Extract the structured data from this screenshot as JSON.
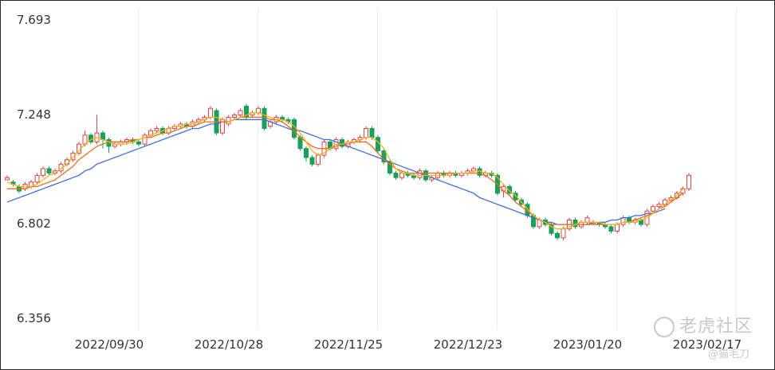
{
  "chart_data": {
    "type": "candlestick",
    "ylim": [
      6.356,
      7.693
    ],
    "yticks": [
      "7.693",
      "7.248",
      "6.802",
      "6.356"
    ],
    "xticks": [
      {
        "label": "2022/09/30",
        "index": 22
      },
      {
        "label": "2022/10/28",
        "index": 42
      },
      {
        "label": "2022/11/25",
        "index": 62
      },
      {
        "label": "2022/12/23",
        "index": 82
      },
      {
        "label": "2023/01/20",
        "index": 102
      },
      {
        "label": "2023/02/17",
        "index": 122
      }
    ],
    "colors": {
      "up": "#e04545",
      "down": "#18a058",
      "ma_short": "#f2b21c",
      "ma_mid": "#ee6c1c",
      "ma_long": "#3f6fd8",
      "grid": "#eeeeee"
    },
    "candles": [
      [
        6.98,
        6.99,
        6.98,
        7.0
      ],
      [
        6.97,
        6.96,
        6.95,
        6.98
      ],
      [
        6.95,
        6.93,
        6.92,
        6.96
      ],
      [
        6.94,
        6.96,
        6.93,
        6.97
      ],
      [
        6.95,
        6.97,
        6.94,
        6.98
      ],
      [
        6.97,
        7.0,
        6.96,
        7.01
      ],
      [
        7.0,
        7.03,
        6.99,
        7.04
      ],
      [
        7.03,
        7.01,
        7.0,
        7.04
      ],
      [
        7.01,
        7.02,
        7.0,
        7.03
      ],
      [
        7.02,
        7.05,
        7.01,
        7.06
      ],
      [
        7.05,
        7.07,
        7.04,
        7.08
      ],
      [
        7.07,
        7.1,
        7.06,
        7.11
      ],
      [
        7.1,
        7.14,
        7.09,
        7.15
      ],
      [
        7.14,
        7.18,
        7.13,
        7.2
      ],
      [
        7.18,
        7.15,
        7.14,
        7.19
      ],
      [
        7.15,
        7.19,
        7.14,
        7.27
      ],
      [
        7.19,
        7.16,
        7.12,
        7.2
      ],
      [
        7.16,
        7.13,
        7.1,
        7.17
      ],
      [
        7.13,
        7.14,
        7.12,
        7.15
      ],
      [
        7.14,
        7.15,
        7.13,
        7.16
      ],
      [
        7.15,
        7.16,
        7.14,
        7.17
      ],
      [
        7.16,
        7.15,
        7.14,
        7.17
      ],
      [
        7.15,
        7.14,
        7.13,
        7.16
      ],
      [
        7.14,
        7.18,
        7.13,
        7.19
      ],
      [
        7.18,
        7.2,
        7.17,
        7.21
      ],
      [
        7.2,
        7.21,
        7.19,
        7.22
      ],
      [
        7.21,
        7.19,
        7.18,
        7.22
      ],
      [
        7.19,
        7.21,
        7.18,
        7.22
      ],
      [
        7.21,
        7.22,
        7.2,
        7.23
      ],
      [
        7.22,
        7.23,
        7.21,
        7.24
      ],
      [
        7.23,
        7.22,
        7.21,
        7.24
      ],
      [
        7.22,
        7.24,
        7.21,
        7.25
      ],
      [
        7.24,
        7.25,
        7.23,
        7.26
      ],
      [
        7.25,
        7.26,
        7.24,
        7.27
      ],
      [
        7.26,
        7.3,
        7.25,
        7.31
      ],
      [
        7.29,
        7.19,
        7.18,
        7.3
      ],
      [
        7.19,
        7.25,
        7.18,
        7.26
      ],
      [
        7.23,
        7.26,
        7.22,
        7.27
      ],
      [
        7.26,
        7.27,
        7.25,
        7.28
      ],
      [
        7.27,
        7.29,
        7.26,
        7.3
      ],
      [
        7.31,
        7.26,
        7.25,
        7.32
      ],
      [
        7.27,
        7.28,
        7.26,
        7.29
      ],
      [
        7.28,
        7.3,
        7.27,
        7.31
      ],
      [
        7.3,
        7.21,
        7.2,
        7.31
      ],
      [
        7.22,
        7.24,
        7.21,
        7.25
      ],
      [
        7.24,
        7.26,
        7.23,
        7.27
      ],
      [
        7.26,
        7.25,
        7.24,
        7.27
      ],
      [
        7.25,
        7.24,
        7.23,
        7.26
      ],
      [
        7.25,
        7.17,
        7.16,
        7.26
      ],
      [
        7.17,
        7.12,
        7.11,
        7.18
      ],
      [
        7.12,
        7.08,
        7.06,
        7.13
      ],
      [
        7.08,
        7.05,
        7.04,
        7.09
      ],
      [
        7.05,
        7.09,
        7.04,
        7.1
      ],
      [
        7.09,
        7.15,
        7.08,
        7.16
      ],
      [
        7.15,
        7.12,
        7.11,
        7.16
      ],
      [
        7.12,
        7.16,
        7.11,
        7.17
      ],
      [
        7.16,
        7.13,
        7.12,
        7.17
      ],
      [
        7.13,
        7.15,
        7.12,
        7.16
      ],
      [
        7.15,
        7.16,
        7.14,
        7.17
      ],
      [
        7.16,
        7.17,
        7.15,
        7.18
      ],
      [
        7.17,
        7.21,
        7.16,
        7.22
      ],
      [
        7.21,
        7.17,
        7.16,
        7.22
      ],
      [
        7.17,
        7.11,
        7.1,
        7.18
      ],
      [
        7.11,
        7.06,
        7.05,
        7.12
      ],
      [
        7.06,
        7.01,
        7.0,
        7.07
      ],
      [
        7.01,
        6.99,
        6.98,
        7.02
      ],
      [
        6.99,
        7.01,
        6.98,
        7.02
      ],
      [
        7.01,
        7.0,
        6.99,
        7.02
      ],
      [
        7.0,
        6.99,
        6.98,
        7.01
      ],
      [
        6.99,
        7.02,
        6.98,
        7.03
      ],
      [
        7.02,
        6.98,
        6.97,
        7.03
      ],
      [
        6.98,
        6.99,
        6.97,
        7.0
      ],
      [
        6.99,
        7.01,
        6.98,
        7.02
      ],
      [
        7.01,
        7.0,
        6.99,
        7.02
      ],
      [
        7.0,
        7.01,
        6.99,
        7.02
      ],
      [
        7.01,
        7.0,
        6.99,
        7.02
      ],
      [
        7.0,
        7.01,
        6.99,
        7.02
      ],
      [
        7.01,
        7.02,
        7.0,
        7.03
      ],
      [
        7.02,
        7.03,
        7.01,
        7.04
      ],
      [
        7.03,
        7.0,
        6.99,
        7.04
      ],
      [
        7.0,
        7.01,
        6.99,
        7.02
      ],
      [
        7.01,
        7.0,
        6.99,
        7.02
      ],
      [
        7.0,
        6.92,
        6.91,
        7.01
      ],
      [
        6.93,
        6.95,
        6.9,
        6.96
      ],
      [
        6.95,
        6.92,
        6.91,
        6.96
      ],
      [
        6.92,
        6.89,
        6.88,
        6.93
      ],
      [
        6.89,
        6.87,
        6.86,
        6.9
      ],
      [
        6.87,
        6.82,
        6.81,
        6.88
      ],
      [
        6.82,
        6.77,
        6.76,
        6.83
      ],
      [
        6.77,
        6.8,
        6.76,
        6.81
      ],
      [
        6.8,
        6.78,
        6.77,
        6.81
      ],
      [
        6.78,
        6.74,
        6.73,
        6.79
      ],
      [
        6.74,
        6.72,
        6.71,
        6.75
      ],
      [
        6.72,
        6.76,
        6.71,
        6.77
      ],
      [
        6.76,
        6.8,
        6.75,
        6.81
      ],
      [
        6.8,
        6.77,
        6.76,
        6.81
      ],
      [
        6.77,
        6.79,
        6.76,
        6.8
      ],
      [
        6.79,
        6.81,
        6.78,
        6.82
      ],
      [
        6.79,
        6.79,
        6.78,
        6.8
      ],
      [
        6.79,
        6.78,
        6.77,
        6.79
      ],
      [
        6.78,
        6.77,
        6.76,
        6.79
      ],
      [
        6.77,
        6.75,
        6.74,
        6.78
      ],
      [
        6.75,
        6.78,
        6.74,
        6.79
      ],
      [
        6.78,
        6.81,
        6.77,
        6.82
      ],
      [
        6.81,
        6.79,
        6.78,
        6.82
      ],
      [
        6.79,
        6.8,
        6.78,
        6.81
      ],
      [
        6.8,
        6.78,
        6.77,
        6.81
      ],
      [
        6.78,
        6.84,
        6.77,
        6.85
      ],
      [
        6.84,
        6.86,
        6.83,
        6.87
      ],
      [
        6.86,
        6.87,
        6.85,
        6.88
      ],
      [
        6.87,
        6.89,
        6.86,
        6.9
      ],
      [
        6.89,
        6.9,
        6.88,
        6.91
      ],
      [
        6.9,
        6.92,
        6.89,
        6.93
      ],
      [
        6.92,
        6.94,
        6.91,
        6.95
      ],
      [
        6.94,
        7.0,
        6.93,
        7.01
      ]
    ],
    "ma_short": [
      6.97,
      6.96,
      6.95,
      6.95,
      6.95,
      6.96,
      6.98,
      7.0,
      7.01,
      7.03,
      7.05,
      7.08,
      7.11,
      7.14,
      7.16,
      7.17,
      7.16,
      7.15,
      7.14,
      7.14,
      7.14,
      7.15,
      7.16,
      7.17,
      7.18,
      7.19,
      7.2,
      7.21,
      7.22,
      7.22,
      7.23,
      7.23,
      7.24,
      7.25,
      7.26,
      7.26,
      7.25,
      7.24,
      7.25,
      7.26,
      7.27,
      7.28,
      7.28,
      7.27,
      7.26,
      7.25,
      7.25,
      7.24,
      7.22,
      7.19,
      7.15,
      7.11,
      7.09,
      7.1,
      7.12,
      7.14,
      7.14,
      7.15,
      7.15,
      7.16,
      7.17,
      7.17,
      7.15,
      7.12,
      7.07,
      7.03,
      7.01,
      7.01,
      7.0,
      7.0,
      7.0,
      7.0,
      7.0,
      7.0,
      7.0,
      7.01,
      7.01,
      7.01,
      7.02,
      7.02,
      7.01,
      7.01,
      6.99,
      6.96,
      6.93,
      6.91,
      6.88,
      6.85,
      6.82,
      6.8,
      6.79,
      6.77,
      6.76,
      6.76,
      6.77,
      6.78,
      6.79,
      6.79,
      6.79,
      6.79,
      6.78,
      6.78,
      6.78,
      6.79,
      6.79,
      6.79,
      6.8,
      6.81,
      6.83,
      6.85,
      6.87,
      6.89,
      6.91,
      6.94
    ],
    "ma_mid": [
      6.94,
      6.94,
      6.94,
      6.94,
      6.95,
      6.95,
      6.96,
      6.97,
      6.98,
      7.0,
      7.02,
      7.04,
      7.07,
      7.09,
      7.11,
      7.13,
      7.14,
      7.15,
      7.15,
      7.15,
      7.15,
      7.16,
      7.16,
      7.17,
      7.17,
      7.18,
      7.19,
      7.19,
      7.2,
      7.21,
      7.22,
      7.22,
      7.23,
      7.24,
      7.24,
      7.24,
      7.24,
      7.24,
      7.25,
      7.26,
      7.26,
      7.26,
      7.26,
      7.26,
      7.25,
      7.25,
      7.24,
      7.22,
      7.2,
      7.17,
      7.15,
      7.13,
      7.12,
      7.12,
      7.12,
      7.13,
      7.14,
      7.14,
      7.15,
      7.15,
      7.15,
      7.13,
      7.1,
      7.07,
      7.05,
      7.03,
      7.02,
      7.01,
      7.01,
      7.01,
      7.01,
      7.01,
      7.01,
      7.01,
      7.01,
      7.01,
      7.01,
      7.01,
      7.01,
      7.01,
      7.0,
      6.98,
      6.96,
      6.93,
      6.91,
      6.88,
      6.86,
      6.84,
      6.82,
      6.8,
      6.79,
      6.78,
      6.78,
      6.78,
      6.78,
      6.78,
      6.78,
      6.78,
      6.78,
      6.78,
      6.78,
      6.78,
      6.78,
      6.79,
      6.79,
      6.8,
      6.81,
      6.82,
      6.83,
      6.85,
      6.86,
      6.88,
      6.9,
      6.92
    ],
    "ma_long": [
      6.88,
      6.89,
      6.9,
      6.91,
      6.92,
      6.93,
      6.94,
      6.95,
      6.96,
      6.97,
      6.98,
      6.99,
      7.0,
      7.02,
      7.03,
      7.05,
      7.06,
      7.07,
      7.08,
      7.09,
      7.1,
      7.11,
      7.12,
      7.13,
      7.14,
      7.15,
      7.16,
      7.17,
      7.18,
      7.19,
      7.2,
      7.21,
      7.21,
      7.22,
      7.23,
      7.23,
      7.24,
      7.24,
      7.25,
      7.25,
      7.25,
      7.25,
      7.25,
      7.25,
      7.24,
      7.23,
      7.22,
      7.21,
      7.2,
      7.2,
      7.19,
      7.18,
      7.17,
      7.16,
      7.16,
      7.15,
      7.14,
      7.13,
      7.12,
      7.11,
      7.1,
      7.09,
      7.08,
      7.07,
      7.06,
      7.05,
      7.04,
      7.03,
      7.02,
      7.01,
      7.0,
      6.99,
      6.98,
      6.97,
      6.96,
      6.95,
      6.94,
      6.93,
      6.92,
      6.9,
      6.89,
      6.88,
      6.87,
      6.86,
      6.85,
      6.84,
      6.83,
      6.82,
      6.81,
      6.8,
      6.79,
      6.79,
      6.78,
      6.78,
      6.78,
      6.78,
      6.78,
      6.78,
      6.79,
      6.79,
      6.79,
      6.8,
      6.8,
      6.81,
      6.81,
      6.82,
      6.82,
      6.83,
      6.83,
      6.84,
      6.85
    ]
  },
  "watermark": {
    "brand": "老虎社区",
    "author": "@猫毛刀"
  }
}
